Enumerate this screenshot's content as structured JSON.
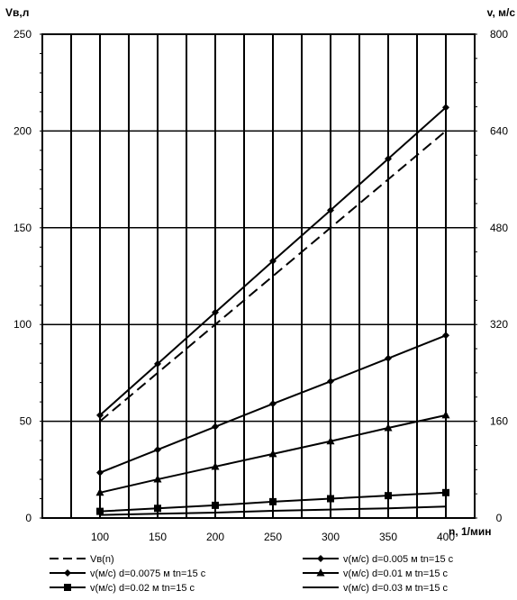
{
  "chart_data": {
    "type": "line",
    "y_left_label": "Vв,л",
    "y_right_label": "v, м/с",
    "x_label": "n, 1/мин",
    "x": [
      100,
      150,
      200,
      250,
      300,
      350,
      400
    ],
    "x_ticks": [
      "100",
      "150",
      "200",
      "250",
      "300",
      "350",
      "400"
    ],
    "xlim": [
      50,
      425
    ],
    "y_left_ticks": [
      "0",
      "50",
      "100",
      "150",
      "200",
      "250"
    ],
    "y_left_lim": [
      0,
      250
    ],
    "y_right_ticks": [
      "0",
      "160",
      "320",
      "480",
      "640",
      "800"
    ],
    "y_right_lim": [
      0,
      800
    ],
    "grid": true,
    "legend_position": "bottom",
    "series": [
      {
        "name": "Vв(n)",
        "axis": "left",
        "style": "dashed",
        "marker": "none",
        "values": [
          50,
          75,
          100,
          125,
          150,
          175,
          200
        ]
      },
      {
        "name": "v(м/с) d=0.005 м tn=15 с",
        "axis": "right",
        "style": "solid",
        "marker": "diamond",
        "values": [
          170,
          255,
          340,
          425,
          509,
          594,
          679
        ]
      },
      {
        "name": "v(м/с) d=0.0075 м tn=15 с",
        "axis": "right",
        "style": "solid",
        "marker": "diamond",
        "values": [
          75,
          113,
          151,
          189,
          226,
          264,
          302
        ]
      },
      {
        "name": "v(м/с) d=0.01 м tn=15 с",
        "axis": "right",
        "style": "solid",
        "marker": "triangle",
        "values": [
          42,
          64,
          85,
          106,
          127,
          149,
          170
        ]
      },
      {
        "name": "v(м/с) d=0.02 м tn=15 с",
        "axis": "right",
        "style": "solid",
        "marker": "square",
        "values": [
          11,
          16,
          21,
          27,
          32,
          37,
          42
        ]
      },
      {
        "name": "v(м/с) d=0.03 м tn=15 с",
        "axis": "right",
        "style": "solid",
        "marker": "none",
        "values": [
          5,
          7,
          9,
          12,
          14,
          16,
          19
        ]
      }
    ]
  }
}
